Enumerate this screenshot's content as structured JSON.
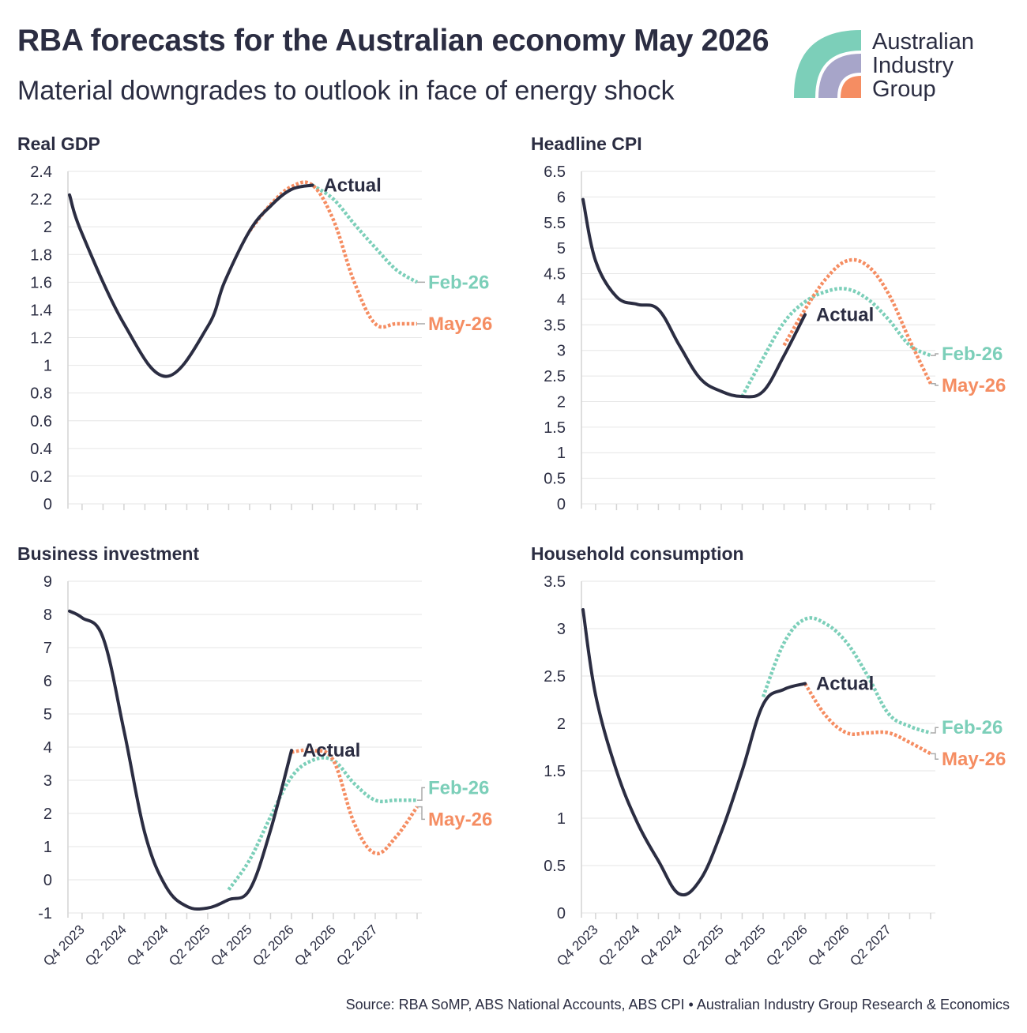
{
  "header": {
    "title": "RBA forecasts for the Australian economy May 2026",
    "subtitle": "Material downgrades to outlook in face of energy shock"
  },
  "logo": {
    "lines": [
      "Australian",
      "Industry",
      "Group"
    ],
    "colors": {
      "teal": "#7ccfb9",
      "purple": "#a7a5c9",
      "orange": "#f58d62"
    }
  },
  "source": "Source: RBA SoMP, ABS National Accounts, ABS CPI • Australian Industry Group Research & Economics",
  "colors": {
    "actual": "#2b2d42",
    "feb": "#7ccfb9",
    "may": "#f58d62"
  },
  "chart_data": [
    {
      "type": "line",
      "title": "Real GDP",
      "categories": [
        "Q4 2023",
        "Q2 2024",
        "Q4 2024",
        "Q2 2025",
        "Q4 2025",
        "Q2 2026",
        "Q4 2026",
        "Q2 2027"
      ],
      "ylim": [
        0,
        2.4
      ],
      "yticks": [
        0,
        0.2,
        0.4,
        0.6,
        0.8,
        1,
        1.2,
        1.4,
        1.6,
        1.8,
        2,
        2.2,
        2.4
      ],
      "series": [
        {
          "name": "Actual",
          "x": [
            -0.3,
            0,
            1,
            2,
            3,
            3.4,
            4,
            4.5,
            5,
            5.5
          ],
          "y": [
            2.23,
            1.95,
            1.3,
            0.92,
            1.28,
            1.6,
            1.97,
            2.15,
            2.27,
            2.3
          ]
        },
        {
          "name": "Feb-26",
          "x": [
            5.5,
            6,
            6.5,
            7,
            7.5,
            8
          ],
          "y": [
            2.3,
            2.2,
            2.02,
            1.85,
            1.69,
            1.6
          ]
        },
        {
          "name": "May-26",
          "x": [
            4,
            4.5,
            5,
            5.5,
            6,
            6.5,
            7,
            7.5,
            8
          ],
          "y": [
            1.97,
            2.16,
            2.29,
            2.3,
            2.05,
            1.6,
            1.3,
            1.3,
            1.3
          ]
        }
      ],
      "annotation": "Actual"
    },
    {
      "type": "line",
      "title": "Headline CPI",
      "categories": [
        "Q4 2023",
        "Q2 2024",
        "Q4 2024",
        "Q2 2025",
        "Q4 2025",
        "Q2 2026",
        "Q4 2026",
        "Q2 2027"
      ],
      "ylim": [
        0,
        6.5
      ],
      "yticks": [
        0,
        0.5,
        1,
        1.5,
        2,
        2.5,
        3,
        3.5,
        4,
        4.5,
        5,
        5.5,
        6,
        6.5
      ],
      "series": [
        {
          "name": "Actual",
          "x": [
            -0.3,
            0,
            0.5,
            1,
            1.5,
            2,
            2.5,
            3,
            3.5,
            4,
            4.5,
            5
          ],
          "y": [
            5.95,
            4.75,
            4.05,
            3.9,
            3.8,
            3.1,
            2.45,
            2.2,
            2.1,
            2.2,
            2.9,
            3.7
          ]
        },
        {
          "name": "Feb-26",
          "x": [
            3.5,
            4,
            4.5,
            5,
            5.5,
            6,
            6.5,
            7,
            7.5,
            8
          ],
          "y": [
            2.1,
            2.85,
            3.55,
            3.95,
            4.15,
            4.2,
            4.0,
            3.6,
            3.1,
            2.9
          ]
        },
        {
          "name": "May-26",
          "x": [
            4.5,
            5,
            5.5,
            6,
            6.5,
            7,
            7.5,
            8
          ],
          "y": [
            3.1,
            3.8,
            4.4,
            4.75,
            4.65,
            4.1,
            3.2,
            2.35
          ]
        }
      ],
      "annotation": "Actual"
    },
    {
      "type": "line",
      "title": "Business investment",
      "categories": [
        "Q4 2023",
        "Q2 2024",
        "Q4 2024",
        "Q2 2025",
        "Q4 2025",
        "Q2 2026",
        "Q4 2026",
        "Q2 2027"
      ],
      "ylim": [
        -1,
        9
      ],
      "yticks": [
        -1,
        0,
        1,
        2,
        3,
        4,
        5,
        6,
        7,
        8,
        9
      ],
      "series": [
        {
          "name": "Actual",
          "x": [
            -0.3,
            0,
            0.5,
            1,
            1.5,
            2,
            2.5,
            3,
            3.5,
            4,
            4.5,
            5
          ],
          "y": [
            8.1,
            7.9,
            7.3,
            4.5,
            1.4,
            -0.2,
            -0.8,
            -0.85,
            -0.6,
            -0.3,
            1.5,
            3.9
          ]
        },
        {
          "name": "Feb-26",
          "x": [
            3.5,
            4,
            4.5,
            5,
            5.5,
            6,
            6.5,
            7,
            7.5,
            8
          ],
          "y": [
            -0.3,
            0.6,
            1.9,
            3.1,
            3.6,
            3.6,
            2.9,
            2.4,
            2.4,
            2.4
          ]
        },
        {
          "name": "May-26",
          "x": [
            5,
            5.5,
            6,
            6.5,
            7,
            7.5,
            8
          ],
          "y": [
            3.85,
            3.9,
            3.6,
            1.7,
            0.8,
            1.3,
            2.2
          ]
        }
      ],
      "annotation": "Actual"
    },
    {
      "type": "line",
      "title": "Household consumption",
      "categories": [
        "Q4 2023",
        "Q2 2024",
        "Q4 2024",
        "Q2 2025",
        "Q4 2025",
        "Q2 2026",
        "Q4 2026",
        "Q2 2027"
      ],
      "ylim": [
        0,
        3.5
      ],
      "yticks": [
        0,
        0.5,
        1,
        1.5,
        2,
        2.5,
        3,
        3.5
      ],
      "series": [
        {
          "name": "Actual",
          "x": [
            -0.3,
            0,
            0.5,
            1,
            1.5,
            2,
            2.5,
            3,
            3.5,
            4,
            4.5,
            5
          ],
          "y": [
            3.2,
            2.3,
            1.5,
            0.95,
            0.55,
            0.2,
            0.35,
            0.85,
            1.5,
            2.2,
            2.36,
            2.42
          ]
        },
        {
          "name": "Feb-26",
          "x": [
            4,
            4.5,
            5,
            5.5,
            6,
            6.5,
            7,
            7.5,
            8
          ],
          "y": [
            2.28,
            2.85,
            3.1,
            3.05,
            2.85,
            2.5,
            2.1,
            1.97,
            1.9
          ]
        },
        {
          "name": "May-26",
          "x": [
            5,
            5.5,
            6,
            6.5,
            7,
            7.5,
            8
          ],
          "y": [
            2.42,
            2.08,
            1.9,
            1.9,
            1.9,
            1.8,
            1.68
          ]
        }
      ],
      "annotation": "Actual"
    }
  ]
}
